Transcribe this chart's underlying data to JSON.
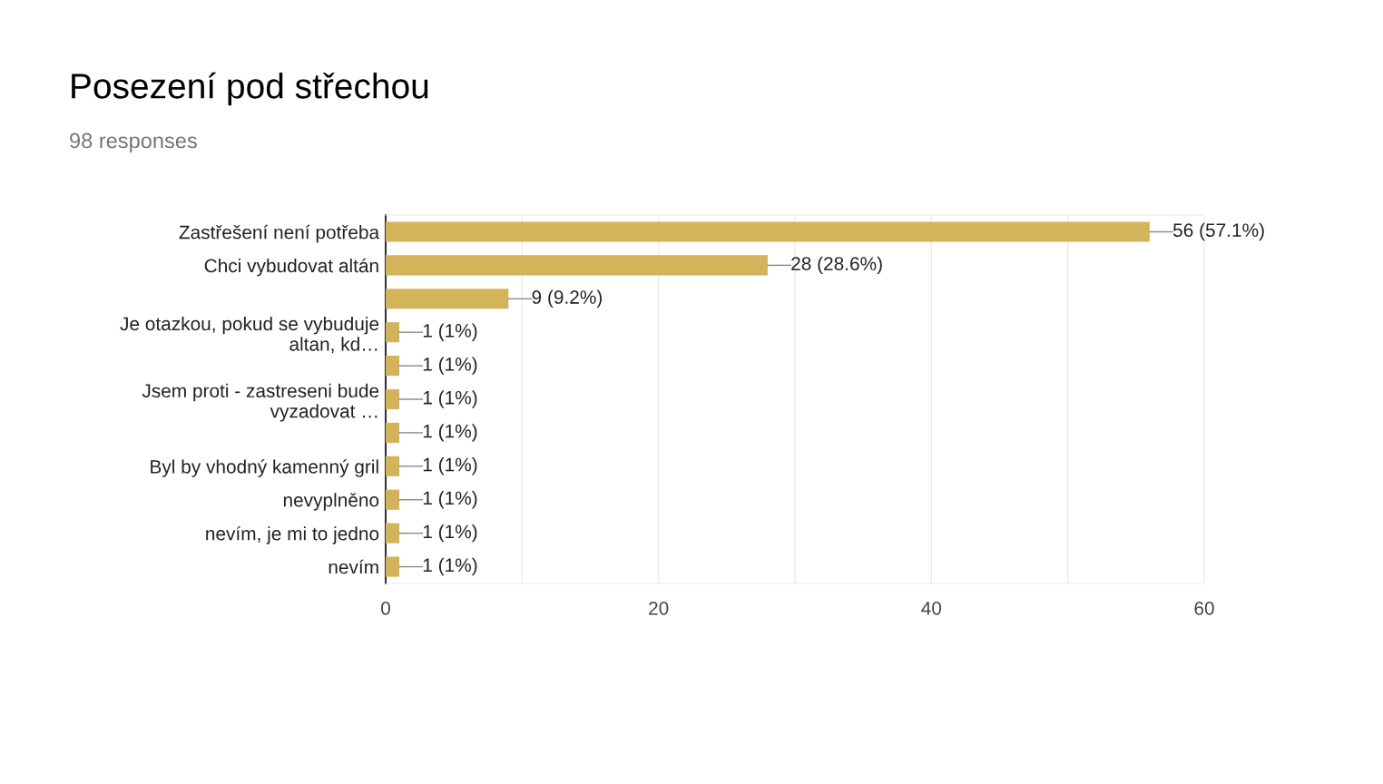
{
  "chart_data": {
    "type": "bar",
    "orientation": "horizontal",
    "title": "Posezení pod střechou",
    "subtitle": "98 responses",
    "categories": [
      "Zastřešení není potřeba",
      "Chci vybudovat altán",
      null,
      "Je otazkou, pokud se vybuduje\naltan, kd…",
      null,
      "Jsem proti - zastreseni bude\nvyzadovat …",
      null,
      "Byl by vhodný kamenný gril",
      "nevyplněno",
      "nevím, je mi to jedno",
      "nevím"
    ],
    "values": [
      56,
      28,
      9,
      1,
      1,
      1,
      1,
      1,
      1,
      1,
      1
    ],
    "value_labels": [
      "56 (57.1%)",
      "28 (28.6%)",
      "9 (9.2%)",
      "1 (1%)",
      "1 (1%)",
      "1 (1%)",
      "1 (1%)",
      "1 (1%)",
      "1 (1%)",
      "1 (1%)",
      "1 (1%)"
    ],
    "color": "#d4b45a",
    "xlim": [
      0,
      60
    ],
    "xticks": [
      0,
      {
        "value": 10,
        "label": null
      },
      20,
      {
        "value": 30,
        "label": null
      },
      40,
      {
        "value": 50,
        "label": null
      },
      60
    ],
    "grid": "x"
  }
}
